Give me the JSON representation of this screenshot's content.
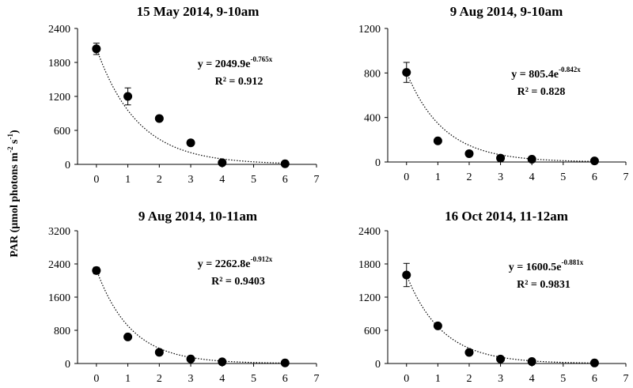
{
  "figure": {
    "ylabel_main": "PAR (µmol photons m",
    "ylabel_sup1": "-2",
    "ylabel_mid": " s",
    "ylabel_sup2": "-1",
    "ylabel_end": ")"
  },
  "chart_data": [
    {
      "type": "scatter",
      "title": "15 May 2014, 9-10am",
      "x": [
        0,
        1,
        2,
        3,
        4,
        6
      ],
      "y": [
        2040,
        1200,
        810,
        380,
        30,
        10
      ],
      "yerr": [
        100,
        150,
        0,
        0,
        0,
        0
      ],
      "xticks": [
        "0",
        "1",
        "2",
        "3",
        "4",
        "5",
        "6",
        "7"
      ],
      "yticks": [
        "0",
        "600",
        "1200",
        "1800",
        "2400"
      ],
      "xlim": [
        -0.6,
        7
      ],
      "ylim": [
        0,
        2400
      ],
      "fit": {
        "a": 2049.9,
        "b": -0.765
      },
      "eq_main": "y = 2049.9e",
      "eq_exp": "-0.765x",
      "r2": "R² = 0.912"
    },
    {
      "type": "scatter",
      "title": "9 Aug 2014, 9-10am",
      "x": [
        0,
        1,
        2,
        3,
        4,
        6
      ],
      "y": [
        805,
        190,
        75,
        35,
        25,
        10
      ],
      "yerr": [
        90,
        0,
        0,
        0,
        0,
        0
      ],
      "xticks": [
        "0",
        "1",
        "2",
        "3",
        "4",
        "5",
        "6",
        "7"
      ],
      "yticks": [
        "0",
        "400",
        "800",
        "1200"
      ],
      "xlim": [
        -0.6,
        7
      ],
      "ylim": [
        0,
        1200
      ],
      "fit": {
        "a": 805.4,
        "b": -0.842
      },
      "eq_main": "y = 805.4e",
      "eq_exp": "-0.842x",
      "r2": "R² = 0.828"
    },
    {
      "type": "scatter",
      "title": "9 Aug 2014, 10-11am",
      "x": [
        0,
        1,
        2,
        3,
        4,
        6
      ],
      "y": [
        2240,
        640,
        270,
        110,
        40,
        15
      ],
      "yerr": [
        80,
        0,
        0,
        0,
        0,
        0
      ],
      "xticks": [
        "0",
        "1",
        "2",
        "3",
        "4",
        "5",
        "6",
        "7"
      ],
      "yticks": [
        "0",
        "800",
        "1600",
        "2400",
        "3200"
      ],
      "xlim": [
        -0.6,
        7
      ],
      "ylim": [
        0,
        3200
      ],
      "fit": {
        "a": 2262.8,
        "b": -0.912
      },
      "eq_main": "y = 2262.8e",
      "eq_exp": "-0.912x",
      "r2": "R² = 0.9403"
    },
    {
      "type": "scatter",
      "title": "16 Oct 2014, 11-12am",
      "x": [
        0,
        1,
        2,
        3,
        4,
        6
      ],
      "y": [
        1600,
        680,
        200,
        80,
        35,
        10
      ],
      "yerr": [
        210,
        0,
        0,
        0,
        0,
        0
      ],
      "xticks": [
        "0",
        "1",
        "2",
        "3",
        "4",
        "5",
        "6",
        "7"
      ],
      "yticks": [
        "0",
        "600",
        "1200",
        "1800",
        "2400"
      ],
      "xlim": [
        -0.6,
        7
      ],
      "ylim": [
        0,
        2400
      ],
      "fit": {
        "a": 1600.5,
        "b": -0.881
      },
      "eq_main": "y = 1600.5e",
      "eq_exp": "-0.881x",
      "r2": "R² = 0.9831"
    }
  ]
}
